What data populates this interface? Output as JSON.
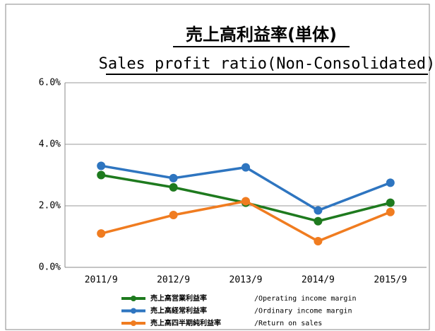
{
  "chart_data": {
    "type": "line",
    "title": "売上高利益率(単体)",
    "subtitle": "Sales profit ratio(Non-Consolidated)",
    "categories": [
      "2011/9",
      "2012/9",
      "2013/9",
      "2014/9",
      "2015/9"
    ],
    "series": [
      {
        "name": "売上高営業利益率",
        "name_en": "/Operating income margin",
        "color": "#1e7a1e",
        "values": [
          3.0,
          2.6,
          2.1,
          1.5,
          2.1
        ]
      },
      {
        "name": "売上高経常利益率",
        "name_en": "/Ordinary income margin",
        "color": "#2e75c0",
        "values": [
          3.3,
          2.9,
          3.25,
          1.85,
          2.75
        ]
      },
      {
        "name": "売上高四半期純利益率",
        "name_en": "/Return on sales",
        "color": "#f07c20",
        "values": [
          1.1,
          1.7,
          2.15,
          0.85,
          1.8
        ]
      }
    ],
    "ylim": [
      0,
      6
    ],
    "yticks": [
      {
        "value": 0,
        "label": "0.0%"
      },
      {
        "value": 2,
        "label": "2.0%"
      },
      {
        "value": 4,
        "label": "4.0%"
      },
      {
        "value": 6,
        "label": "6.0%"
      }
    ],
    "grid": true
  }
}
